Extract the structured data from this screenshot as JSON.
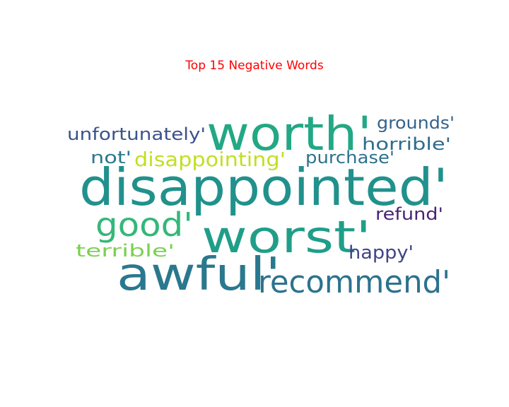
{
  "chart_data": {
    "type": "wordcloud",
    "title": "Top 15 Negative Words",
    "title_color": "#ff0000",
    "words": [
      {
        "text": "disappointed'",
        "color": "#21918c"
      },
      {
        "text": "worth'",
        "color": "#22a884"
      },
      {
        "text": "worst'",
        "color": "#1f9e89"
      },
      {
        "text": "awful'",
        "color": "#2a788e"
      },
      {
        "text": "recommend'",
        "color": "#2c728e"
      },
      {
        "text": "good'",
        "color": "#35b779"
      },
      {
        "text": "disappointing'",
        "color": "#c2df23"
      },
      {
        "text": "unfortunately'",
        "color": "#3b528b"
      },
      {
        "text": "grounds'",
        "color": "#33638d"
      },
      {
        "text": "horrible'",
        "color": "#2f6c8e"
      },
      {
        "text": "not'",
        "color": "#2a788e"
      },
      {
        "text": "purchase'",
        "color": "#2c728e"
      },
      {
        "text": "refund'",
        "color": "#482475"
      },
      {
        "text": "terrible'",
        "color": "#7ad151"
      },
      {
        "text": "happy'",
        "color": "#414487"
      }
    ]
  }
}
